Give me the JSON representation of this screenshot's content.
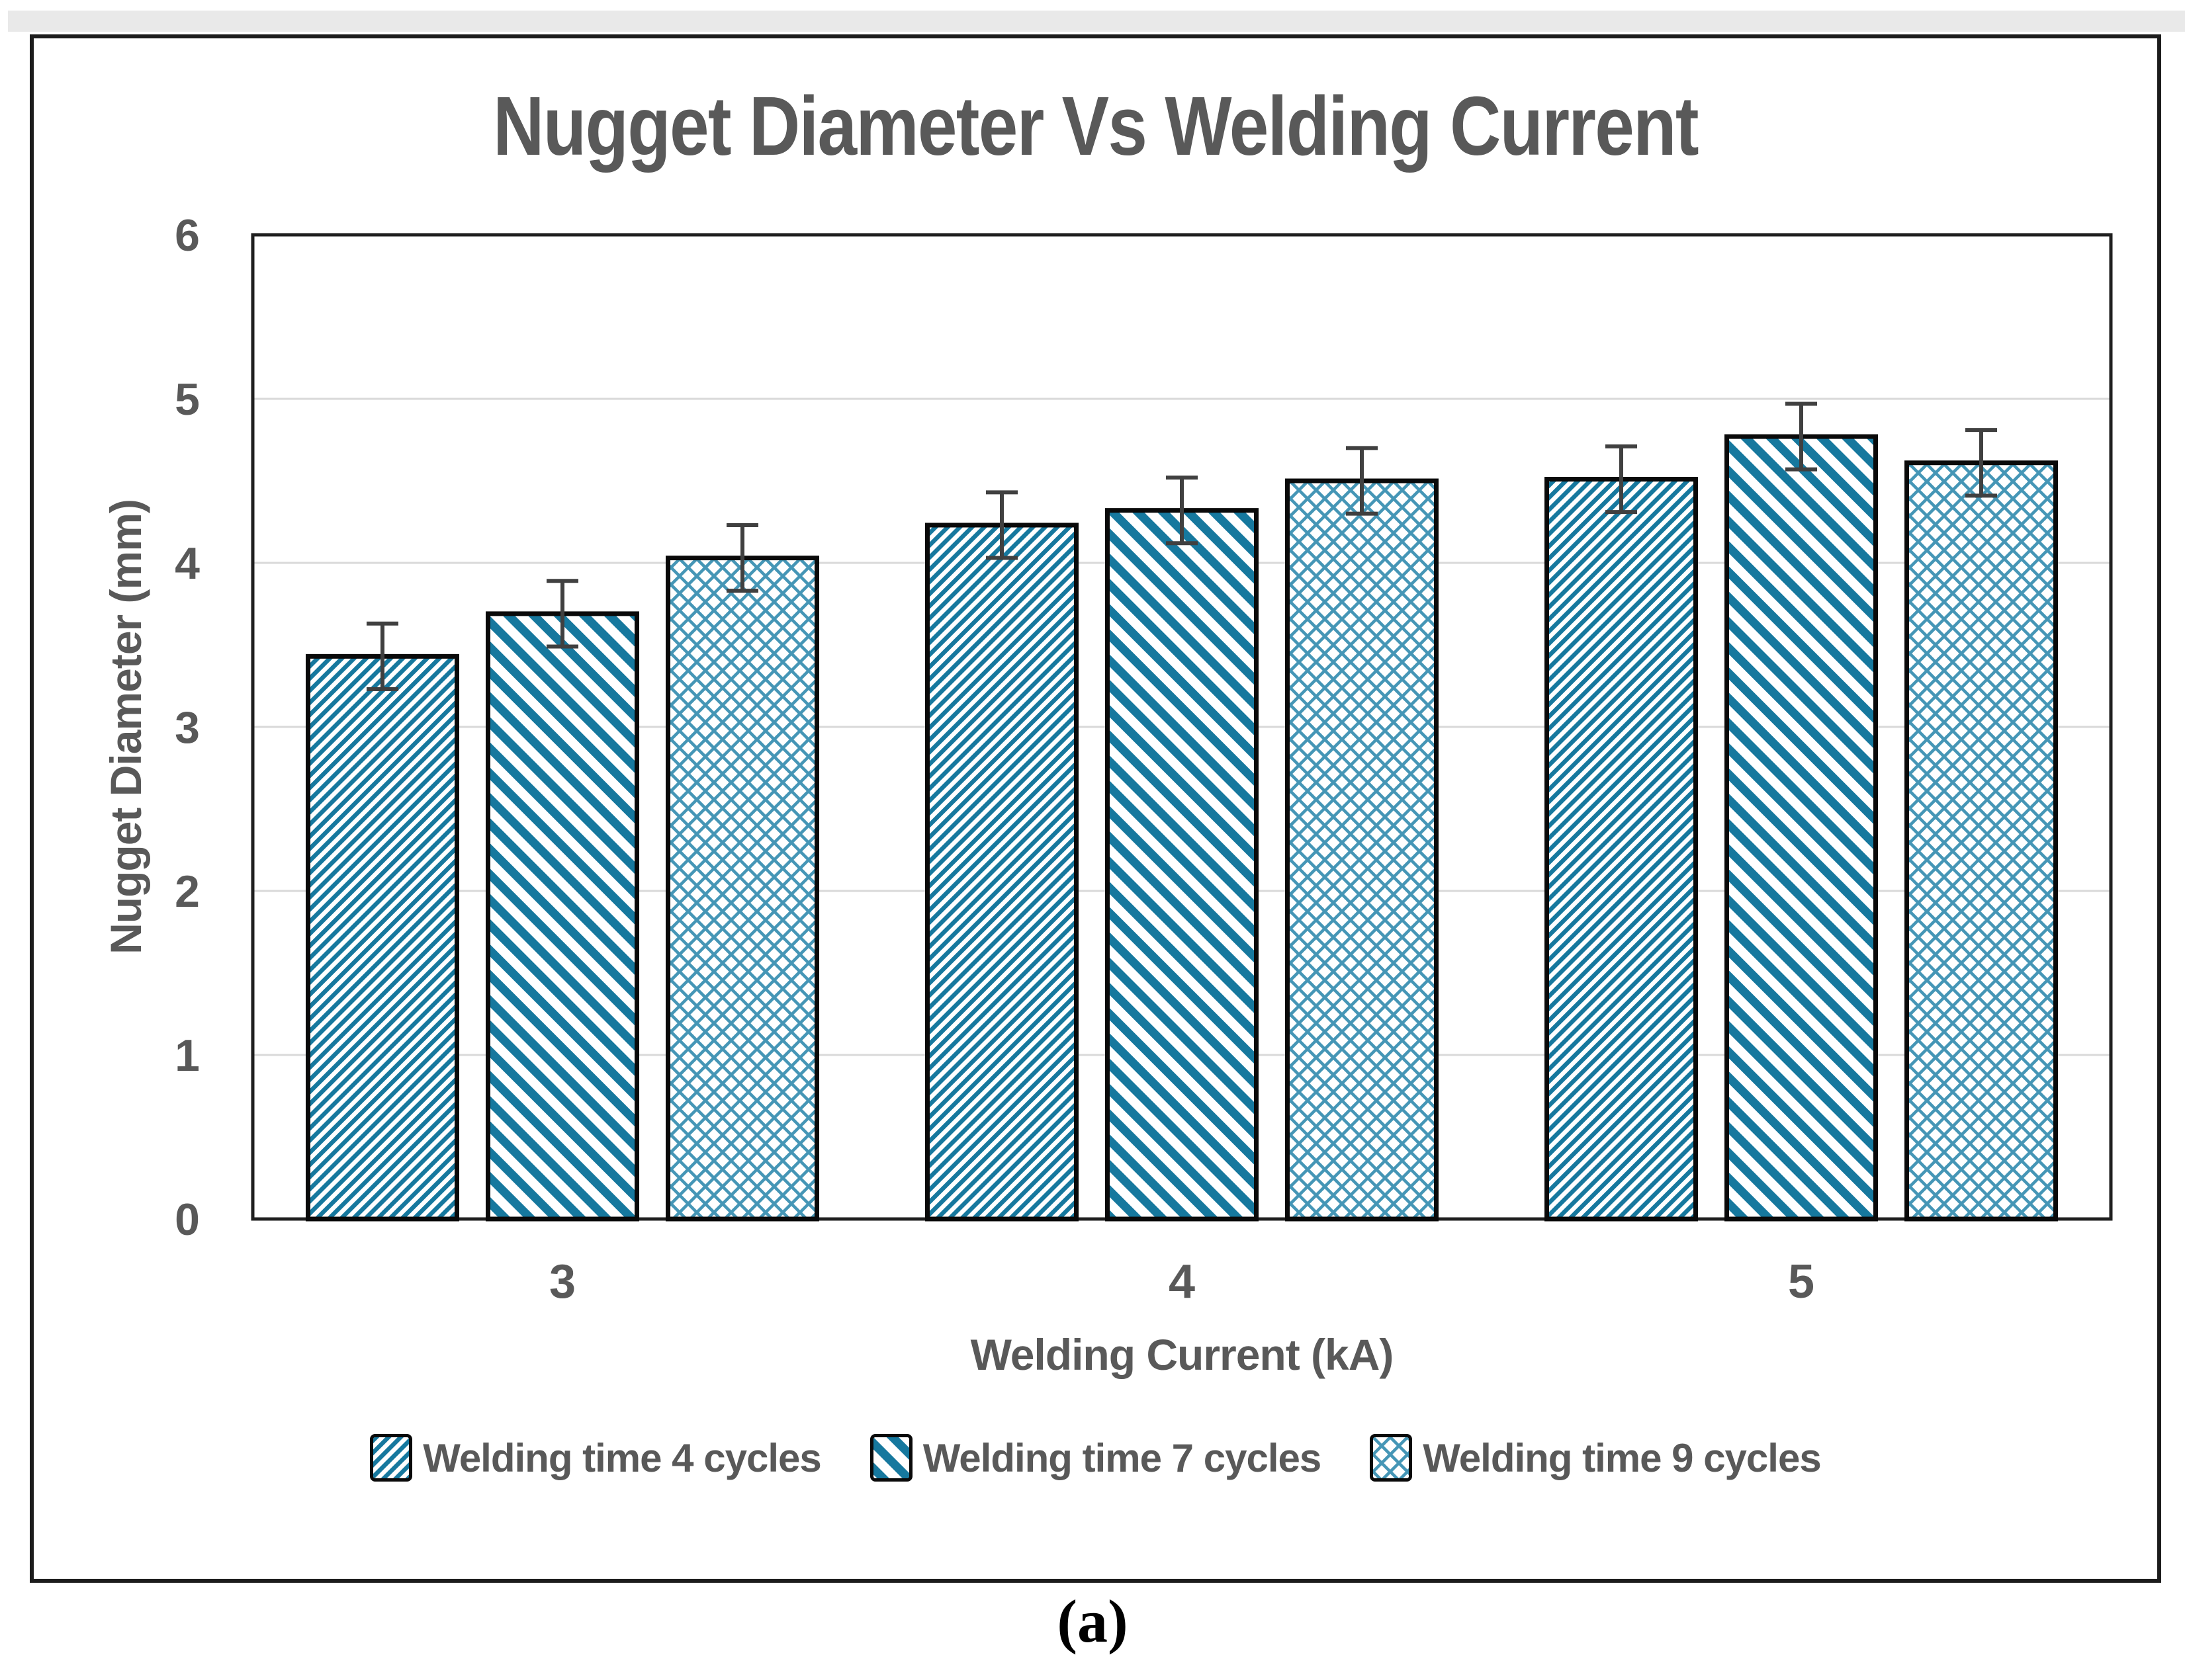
{
  "page": {
    "caption": "(a)"
  },
  "chart": {
    "colors": {
      "hatch_dark": "#16789e",
      "hatch_light": "#4596b6",
      "text": "#595959",
      "grid": "#d9d9d9",
      "frame": "#1f1f1f",
      "bar_outline": "#0a0a0a",
      "error_bar": "#404040",
      "background": "#ffffff",
      "top_strip": "#e9e9e9"
    }
  },
  "chart_data": {
    "type": "bar",
    "title": "Nugget Diameter Vs Welding Current",
    "xlabel": "Welding Current (kA)",
    "ylabel": "Nugget Diameter (mm)",
    "categories": [
      "3",
      "4",
      "5"
    ],
    "series": [
      {
        "name": "Welding time 4 cycles",
        "pattern": "diagonal-forward",
        "values": [
          3.43,
          4.23,
          4.51
        ],
        "errors": [
          0.2,
          0.2,
          0.2
        ]
      },
      {
        "name": "Welding time 7 cycles",
        "pattern": "diagonal-backward",
        "values": [
          3.69,
          4.32,
          4.77
        ],
        "errors": [
          0.2,
          0.2,
          0.2
        ]
      },
      {
        "name": "Welding time 9 cycles",
        "pattern": "crosshatch",
        "values": [
          4.03,
          4.5,
          4.61
        ],
        "errors": [
          0.2,
          0.2,
          0.2
        ]
      }
    ],
    "ylim": [
      0,
      6
    ],
    "yticks": [
      0,
      1,
      2,
      3,
      4,
      5,
      6
    ],
    "grid": true,
    "legend_position": "bottom"
  }
}
